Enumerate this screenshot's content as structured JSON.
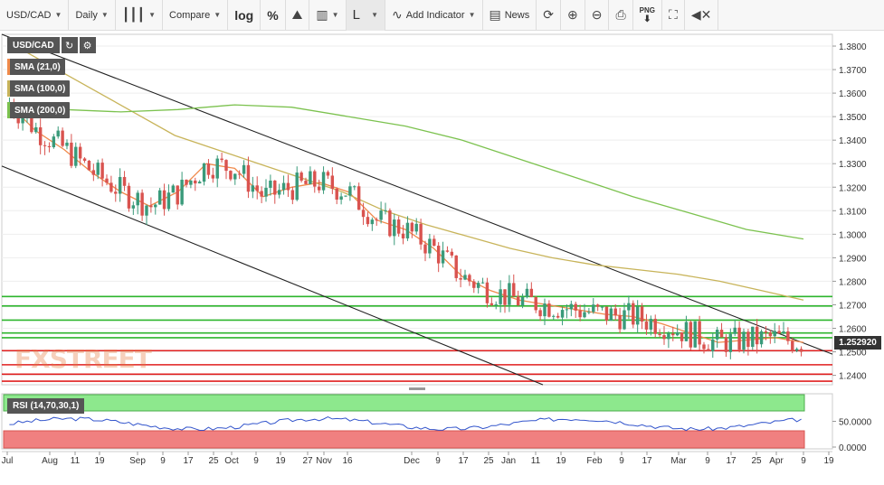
{
  "toolbar": {
    "symbol": "USD/CAD",
    "interval": "Daily",
    "compare": "Compare",
    "log": "log",
    "percent": "%",
    "line_type": "L",
    "add_indicator": "Add Indicator",
    "news": "News",
    "png": "PNG"
  },
  "legend": {
    "symbol": "USD/CAD",
    "sma21": "SMA (21,0)",
    "sma100": "SMA (100,0)",
    "sma200": "SMA (200,0)",
    "rsi": "RSI (14,70,30,1)"
  },
  "colors": {
    "sma21": "#f08a4b",
    "sma100": "#c8b45a",
    "sma200": "#7cc24f",
    "up": "#3a9a7a",
    "down": "#d9534f",
    "support_green": "#2db52d",
    "resist_red": "#e02020",
    "rsi_line": "#3355cc"
  },
  "price_axis": [
    "1.3800",
    "1.3700",
    "1.3600",
    "1.3500",
    "1.3400",
    "1.3300",
    "1.3200",
    "1.3100",
    "1.3000",
    "1.2900",
    "1.2800",
    "1.2700",
    "1.2600",
    "1.2500",
    "1.2400"
  ],
  "current_price": "1.252920",
  "rsi_axis": [
    "50.0000",
    "0.0000"
  ],
  "x_axis": [
    "Jul",
    "Aug",
    "11",
    "19",
    "Sep",
    "9",
    "17",
    "25",
    "Oct",
    "9",
    "19",
    "27",
    "Nov",
    "16",
    "Dec",
    "9",
    "17",
    "25",
    "Jan",
    "11",
    "19",
    "Feb",
    "9",
    "17",
    "Mar",
    "9",
    "17",
    "25",
    "Apr",
    "9",
    "19"
  ],
  "watermark": "FXSTREET",
  "chart_data": {
    "type": "line",
    "title": "USD/CAD",
    "ylim": [
      1.236,
      1.385
    ],
    "horizontal_levels": {
      "green": [
        1.2735,
        1.2695,
        1.2635,
        1.258,
        1.256
      ],
      "red": [
        1.2505,
        1.2445,
        1.2405,
        1.2375
      ]
    },
    "series": [
      {
        "name": "SMA (21,0)",
        "values": [
          1.356,
          1.344,
          1.336,
          1.326,
          1.318,
          1.312,
          1.318,
          1.33,
          1.328,
          1.316,
          1.32,
          1.322,
          1.318,
          1.306,
          1.302,
          1.294,
          1.282,
          1.276,
          1.272,
          1.27,
          1.268,
          1.266,
          1.265,
          1.262,
          1.258,
          1.254,
          1.255,
          1.256,
          1.254
        ]
      },
      {
        "name": "SMA (100,0)",
        "values": [
          1.382,
          1.372,
          1.362,
          1.352,
          1.342,
          1.336,
          1.33,
          1.324,
          1.318,
          1.31,
          1.304,
          1.299,
          1.294,
          1.29,
          1.287,
          1.285,
          1.283,
          1.28,
          1.276,
          1.272
        ]
      },
      {
        "name": "SMA (200,0)",
        "values": [
          1.353,
          1.353,
          1.352,
          1.353,
          1.355,
          1.354,
          1.35,
          1.346,
          1.34,
          1.332,
          1.324,
          1.316,
          1.309,
          1.302,
          1.298
        ]
      }
    ]
  }
}
